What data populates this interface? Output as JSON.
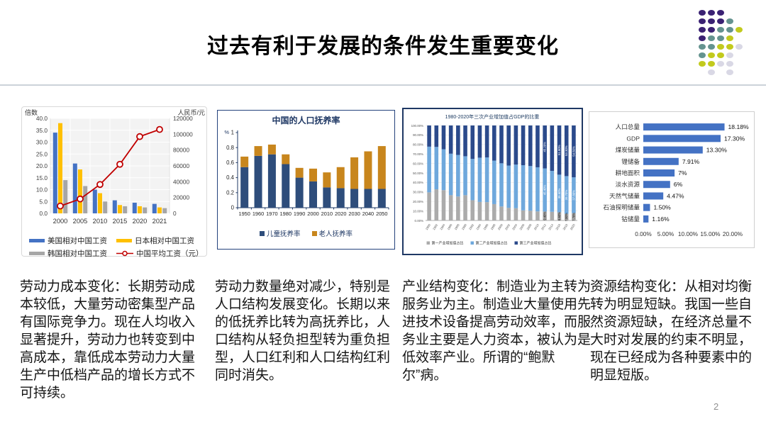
{
  "slide": {
    "title": "过去有利于发展的条件发生重要变化",
    "page_number": "2"
  },
  "decor_dots": {
    "colors": {
      "P": "#3a2173",
      "T": "#64938f",
      "Y": "#c2ca1d",
      "L": "#d9d8e5"
    },
    "grid": [
      "PPP..",
      "PPPT.",
      "PPTTY",
      "PTTY.",
      "TTYYL",
      "TYYL.",
      "YYLL.",
      ".L.L."
    ]
  },
  "paragraphs": [
    "劳动力成本变化：长期劳动成本较低，大量劳动密集型产品有国际竞争力。现在人均收入显著提升，劳动力也转变到中高成本，靠低成本劳动力大量生产中低档产品的增长方式不可持续。",
    "劳动力数量绝对减少，特别是人口结构发展变化。长期以来的低抚养比转为高抚养比，人口结构从轻负担型转为重负担型，人口红利和人口结构红利同时消失。",
    "产业结构变化：制造业为主转为服务业为主。制造业大量使用先进技术设备提高劳动效率，而服务业主要是人力资本，被认为是低效率产业。所谓的“鲍默尔”病。",
    "资源结构变化：从相对均衡转为明显短缺。我国一些自然资源短缺，在经济总量不大时对发展的约束不明显，现在已经成为各种要素中的明显短版。"
  ],
  "chart_data": [
    {
      "type": "bar",
      "subtype": "combo-bar-line-dual-axis",
      "left_axis_title": "倍数",
      "right_axis_title": "人民币/元",
      "categories": [
        "2000",
        "2005",
        "2010",
        "2015",
        "2020",
        "2021"
      ],
      "left_axis": {
        "min": 0,
        "max": 40,
        "step": 5
      },
      "right_axis": {
        "min": 0,
        "max": 120000,
        "step": 20000
      },
      "series": [
        {
          "name": "美国相对中国工资",
          "kind": "bar",
          "color": "#4472c4",
          "values": [
            34,
            21,
            10,
            5.5,
            4.5,
            4
          ]
        },
        {
          "name": "日本相对中国工资",
          "kind": "bar",
          "color": "#ffc000",
          "values": [
            38,
            18.5,
            8.5,
            3.5,
            3,
            2.5
          ]
        },
        {
          "name": "韩国相对中国工资",
          "kind": "bar",
          "color": "#a6a6a6",
          "values": [
            14,
            11.5,
            5,
            3,
            2.5,
            2.2
          ]
        },
        {
          "name": "中国平均工资（元）",
          "kind": "line",
          "axis": "right",
          "color": "#c00000",
          "values": [
            9300,
            18200,
            36500,
            62000,
            97000,
            106000
          ]
        }
      ]
    },
    {
      "type": "bar",
      "subtype": "stacked",
      "title": "中国的人口抚养率",
      "y_unit": "%",
      "ylim": [
        0,
        1
      ],
      "y_ticks": [
        "0",
        "0.2",
        "0.4",
        "0.6",
        "0.8",
        "1"
      ],
      "categories": [
        "1950",
        "1960",
        "1970",
        "1980",
        "1990",
        "2000",
        "2010",
        "2020",
        "2030",
        "2040",
        "2050"
      ],
      "series": [
        {
          "name": "儿童抚养率",
          "color": "#2e4d7b",
          "values": [
            0.54,
            0.69,
            0.71,
            0.58,
            0.4,
            0.35,
            0.27,
            0.26,
            0.25,
            0.25,
            0.25
          ]
        },
        {
          "name": "老人抚养率",
          "color": "#c8861d",
          "values": [
            0.14,
            0.13,
            0.13,
            0.13,
            0.13,
            0.17,
            0.2,
            0.28,
            0.42,
            0.5,
            0.57
          ]
        }
      ]
    },
    {
      "type": "bar",
      "subtype": "stacked-100pct",
      "title": "1980-2020年三次产业增加值占GDP的比重",
      "ylim": [
        0,
        100
      ],
      "y_ticks": [
        "0.00%",
        "10.00%",
        "20.00%",
        "30.00%",
        "40.00%",
        "50.00%",
        "60.00%",
        "70.00%",
        "80.00%",
        "90.00%",
        "100.00%"
      ],
      "categories": [
        "1980",
        "1982",
        "1984",
        "1986",
        "1988",
        "1990",
        "1992",
        "1994",
        "1996",
        "1998",
        "2000",
        "2002",
        "2004",
        "2006",
        "2008",
        "2010",
        "2012",
        "2014",
        "2016",
        "2018",
        "2020"
      ],
      "labeled_categories": [
        "2012",
        "2016",
        "2018",
        "2020"
      ],
      "series": [
        {
          "name": "第一产业增加值占比",
          "color": "#ababab",
          "values": [
            29.6,
            32.8,
            31.9,
            26.6,
            25.2,
            26.6,
            21.3,
            19.5,
            19.3,
            17.2,
            14.7,
            13.3,
            12.9,
            10.6,
            10.2,
            9.5,
            9.4,
            9.1,
            8.6,
            7.0,
            7.7
          ]
        },
        {
          "name": "第二产业增加值占比",
          "color": "#6fa8dc",
          "values": [
            48.1,
            44.6,
            43.1,
            43.7,
            43.8,
            41.0,
            43.5,
            46.6,
            47.1,
            45.8,
            45.5,
            44.5,
            45.9,
            47.6,
            47.1,
            46.5,
            45.4,
            43.1,
            39.6,
            39.7,
            37.8
          ]
        },
        {
          "name": "第三产业增加值占比",
          "color": "#2b4a8b",
          "values": [
            22.3,
            22.6,
            25.0,
            29.7,
            31.0,
            32.4,
            35.2,
            33.9,
            33.6,
            37.0,
            39.8,
            42.2,
            41.2,
            41.8,
            42.7,
            44.0,
            45.2,
            47.8,
            51.8,
            53.3,
            54.5
          ]
        }
      ]
    },
    {
      "type": "bar",
      "subtype": "horizontal",
      "bar_color": "#4472c4",
      "xlim": [
        0,
        20
      ],
      "categories": [
        "人口总量",
        "GDP",
        "煤炭储量",
        "锂储备",
        "耕地面积",
        "淡水资源",
        "天然气储量",
        "石油探明储量",
        "钴储量"
      ],
      "values": [
        18.18,
        17.3,
        13.3,
        7.91,
        7,
        6,
        4.47,
        1.5,
        1.16
      ],
      "value_labels": [
        "18.18%",
        "17.30%",
        "13.30%",
        "7.91%",
        "7%",
        "6%",
        "4.47%",
        "1.50%",
        "1.16%"
      ],
      "x_ticks": [
        {
          "v": 0,
          "label": "0.00%"
        },
        {
          "v": 5,
          "label": "5.00%"
        },
        {
          "v": 10,
          "label": "10.00%"
        },
        {
          "v": 15,
          "label": "15.00%"
        },
        {
          "v": 20,
          "label": "20.00%"
        }
      ]
    }
  ]
}
